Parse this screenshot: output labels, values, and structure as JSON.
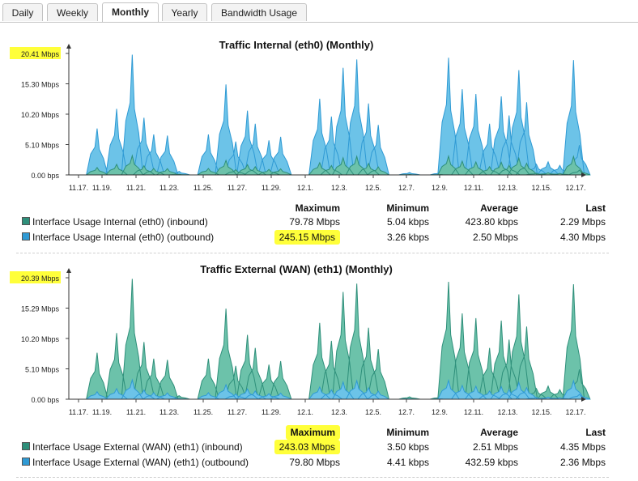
{
  "tabs": [
    {
      "label": "Daily",
      "active": false
    },
    {
      "label": "Weekly",
      "active": false
    },
    {
      "label": "Monthly",
      "active": true
    },
    {
      "label": "Yearly",
      "active": false
    },
    {
      "label": "Bandwidth Usage",
      "active": false
    }
  ],
  "stats_headers": {
    "max": "Maximum",
    "min": "Minimum",
    "avg": "Average",
    "last": "Last"
  },
  "colors": {
    "inbound": "#2e8f7a",
    "outbound": "#2f9ad4",
    "inbound_fill": "#6cc2aa",
    "outbound_fill": "#6cc3e8",
    "highlight": "#ffff3a"
  },
  "chart_data": [
    {
      "type": "area",
      "title": "Traffic Internal (eth0) (Monthly)",
      "y_ticks": [
        "20.41 Mbps",
        "15.30 Mbps",
        "10.20 Mbps",
        "5.10 Mbps",
        "0.00 bps"
      ],
      "ylim": [
        0,
        20.41
      ],
      "x_ticks": [
        "11.17.",
        "11.19.",
        "11.21.",
        "11.23.",
        "11.25.",
        "11.27.",
        "11.29.",
        "12.1.",
        "12.3.",
        "12.5.",
        "12.7.",
        "12.9.",
        "12.11.",
        "12.13.",
        "12.15.",
        "12.17."
      ],
      "top_series": "outbound",
      "series": [
        {
          "name": "Interface Usage Internal (eth0) (inbound)",
          "key": "inbound",
          "max": "79.78 Mbps",
          "min": "5.04 kbps",
          "avg": "423.80 kbps",
          "last": "2.29 Mbps",
          "max_highlight": false
        },
        {
          "name": "Interface Usage Internal (eth0) (outbound)",
          "key": "outbound",
          "max": "245.15 Mbps",
          "min": "3.26 kbps",
          "avg": "2.50 Mbps",
          "last": "4.30 Mbps",
          "max_highlight": true
        }
      ],
      "peaks": [
        [
          1.2,
          7.8
        ],
        [
          2.2,
          11.1
        ],
        [
          3.0,
          20.2
        ],
        [
          3.6,
          9.6
        ],
        [
          4.1,
          6.8
        ],
        [
          4.8,
          6.6
        ],
        [
          5.4,
          0.6
        ],
        [
          6.9,
          6.8
        ],
        [
          7.8,
          15.2
        ],
        [
          8.3,
          5.6
        ],
        [
          8.9,
          10.8
        ],
        [
          9.3,
          8.6
        ],
        [
          10.0,
          5.8
        ],
        [
          10.6,
          6.4
        ],
        [
          12.6,
          12.8
        ],
        [
          13.2,
          9.8
        ],
        [
          13.8,
          18.0
        ],
        [
          14.5,
          19.4
        ],
        [
          15.1,
          12.0
        ],
        [
          15.6,
          8.4
        ],
        [
          17.2,
          0.4
        ],
        [
          18.8,
          0.4
        ],
        [
          19.2,
          19.7
        ],
        [
          19.9,
          14.4
        ],
        [
          20.6,
          13.6
        ],
        [
          21.3,
          8.6
        ],
        [
          21.9,
          13.2
        ],
        [
          22.3,
          10.0
        ],
        [
          22.8,
          17.6
        ],
        [
          23.2,
          12.2
        ],
        [
          23.7,
          1.8
        ],
        [
          24.3,
          2.2
        ],
        [
          24.9,
          1.6
        ],
        [
          25.6,
          19.3
        ],
        [
          25.9,
          5.0
        ]
      ]
    },
    {
      "type": "area",
      "title": "Traffic External (WAN) (eth1) (Monthly)",
      "y_ticks": [
        "20.39 Mbps",
        "15.29 Mbps",
        "10.20 Mbps",
        "5.10 Mbps",
        "0.00 bps"
      ],
      "ylim": [
        0,
        20.39
      ],
      "x_ticks": [
        "11.17.",
        "11.19.",
        "11.21.",
        "11.23.",
        "11.25.",
        "11.27.",
        "11.29.",
        "12.1.",
        "12.3.",
        "12.5.",
        "12.7.",
        "12.9.",
        "12.11.",
        "12.13.",
        "12.15.",
        "12.17."
      ],
      "top_series": "inbound",
      "series": [
        {
          "name": "Interface Usage External (WAN) (eth1) (inbound)",
          "key": "inbound",
          "max": "243.03 Mbps",
          "min": "3.50 kbps",
          "avg": "2.51 Mbps",
          "last": "4.35 Mbps",
          "max_highlight": true
        },
        {
          "name": "Interface Usage External (WAN) (eth1) (outbound)",
          "key": "outbound",
          "max": "79.80 Mbps",
          "min": "4.41 kbps",
          "avg": "432.59 kbps",
          "last": "2.36 Mbps",
          "max_highlight": false
        }
      ],
      "peaks": [
        [
          1.2,
          7.8
        ],
        [
          2.2,
          11.1
        ],
        [
          3.0,
          20.2
        ],
        [
          3.6,
          9.6
        ],
        [
          4.1,
          6.8
        ],
        [
          4.8,
          6.6
        ],
        [
          5.4,
          0.6
        ],
        [
          6.9,
          6.8
        ],
        [
          7.8,
          15.2
        ],
        [
          8.3,
          5.6
        ],
        [
          8.9,
          10.8
        ],
        [
          9.3,
          8.6
        ],
        [
          10.0,
          5.8
        ],
        [
          10.6,
          6.4
        ],
        [
          12.6,
          12.8
        ],
        [
          13.2,
          9.8
        ],
        [
          13.8,
          18.0
        ],
        [
          14.5,
          19.4
        ],
        [
          15.1,
          12.0
        ],
        [
          15.6,
          8.4
        ],
        [
          17.2,
          0.4
        ],
        [
          18.8,
          0.4
        ],
        [
          19.2,
          19.7
        ],
        [
          19.9,
          14.4
        ],
        [
          20.6,
          13.6
        ],
        [
          21.3,
          8.6
        ],
        [
          21.9,
          13.2
        ],
        [
          22.3,
          10.0
        ],
        [
          22.8,
          17.6
        ],
        [
          23.2,
          12.2
        ],
        [
          23.7,
          1.8
        ],
        [
          24.3,
          2.2
        ],
        [
          24.9,
          1.6
        ],
        [
          25.6,
          19.3
        ],
        [
          25.9,
          5.0
        ]
      ]
    }
  ]
}
